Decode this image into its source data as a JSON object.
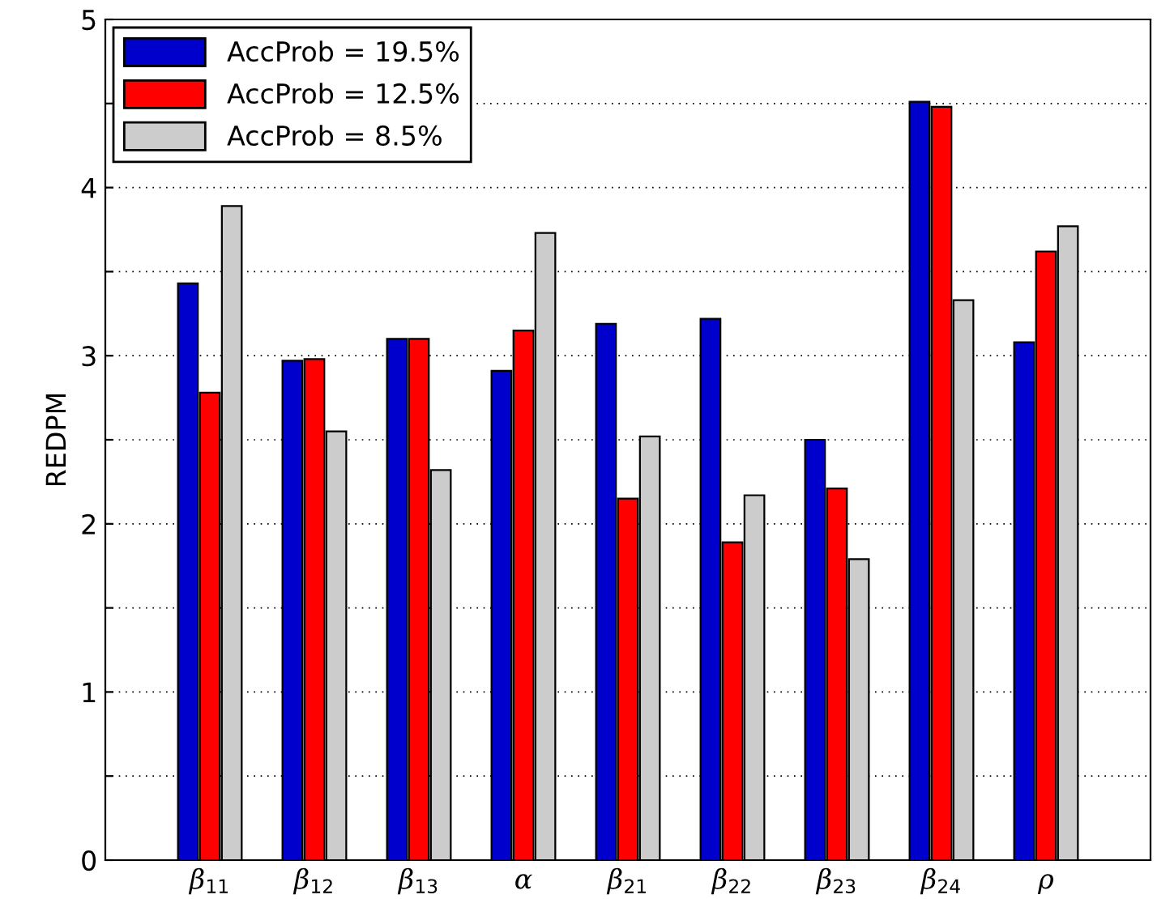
{
  "chart_data": {
    "type": "bar",
    "ylabel": "REDPM",
    "categories": [
      "β$_{11}$",
      "β$_{12}$",
      "β$_{13}$",
      "α",
      "β$_{21}$",
      "β$_{22}$",
      "β$_{23}$",
      "β$_{24}$",
      "ρ"
    ],
    "series": [
      {
        "name": "AccProb = 19.5%",
        "color": "#0000cc",
        "values": [
          3.43,
          2.97,
          3.1,
          2.91,
          3.19,
          3.22,
          2.5,
          4.51,
          3.08
        ]
      },
      {
        "name": "AccProb = 12.5%",
        "color": "#ff0000",
        "values": [
          2.78,
          2.98,
          3.1,
          3.15,
          2.15,
          1.89,
          2.21,
          4.48,
          3.62
        ]
      },
      {
        "name": "AccProb = 8.5%",
        "color": "#cccccc",
        "values": [
          3.89,
          2.55,
          2.32,
          3.73,
          2.52,
          2.17,
          1.79,
          3.33,
          3.77
        ]
      }
    ],
    "ylim": [
      0,
      5
    ],
    "yticks": [
      0,
      {
        "value": 0.5,
        "label": null
      },
      1,
      {
        "value": 1.5,
        "label": null
      },
      2,
      {
        "value": 2.5,
        "label": null
      },
      3,
      {
        "value": 3.5,
        "label": null
      },
      4,
      {
        "value": 4.5,
        "label": null
      },
      5
    ],
    "grid": "y",
    "legend": "top left"
  }
}
